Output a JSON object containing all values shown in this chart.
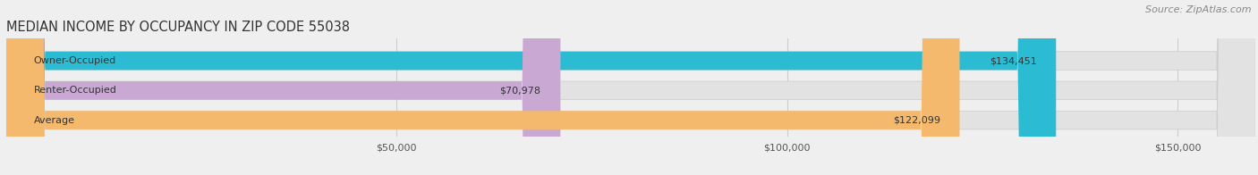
{
  "title": "MEDIAN INCOME BY OCCUPANCY IN ZIP CODE 55038",
  "source": "Source: ZipAtlas.com",
  "categories": [
    "Owner-Occupied",
    "Renter-Occupied",
    "Average"
  ],
  "values": [
    134451,
    70978,
    122099
  ],
  "bar_colors": [
    "#2bbcd4",
    "#c9a8d4",
    "#f5b96e"
  ],
  "value_labels": [
    "$134,451",
    "$70,978",
    "$122,099"
  ],
  "xlim": [
    0,
    160000
  ],
  "xticks": [
    0,
    50000,
    100000,
    150000
  ],
  "xtick_labels": [
    "",
    "$50,000",
    "$100,000",
    "$150,000"
  ],
  "background_color": "#efefef",
  "bar_background_color": "#e2e2e2",
  "title_fontsize": 10.5,
  "source_fontsize": 8,
  "label_fontsize": 8,
  "value_fontsize": 8,
  "tick_fontsize": 8
}
